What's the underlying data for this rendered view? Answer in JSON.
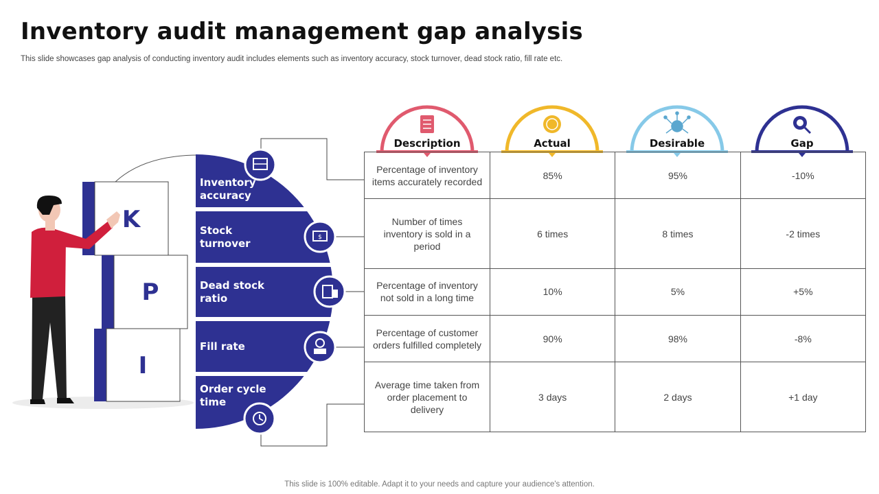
{
  "page": {
    "title": "Inventory audit management gap analysis",
    "subtitle": "This slide showcases gap analysis of conducting inventory audit includes elements such as inventory accuracy, stock turnover, dead stock ratio, fill rate etc.",
    "footer": "This slide is 100% editable. Adapt it to your needs and capture your audience's attention."
  },
  "blocks": {
    "k": "K",
    "p": "P",
    "i": "I"
  },
  "kpis": [
    {
      "label": "Inventory accuracy",
      "icon": "inventory-icon"
    },
    {
      "label": "Stock turnover",
      "icon": "turnover-icon"
    },
    {
      "label": "Dead stock ratio",
      "icon": "dead-stock-icon"
    },
    {
      "label": "Fill rate",
      "icon": "fill-rate-icon"
    },
    {
      "label": "Order cycle time",
      "icon": "order-cycle-icon"
    }
  ],
  "columns": [
    {
      "label": "Description",
      "color": "#e05a6e",
      "icon": "document-icon"
    },
    {
      "label": "Actual",
      "color": "#f0b82a",
      "icon": "badge-icon"
    },
    {
      "label": "Desirable",
      "color": "#86c9e8",
      "icon": "brain-network-icon"
    },
    {
      "label": "Gap",
      "color": "#2e3192",
      "icon": "magnifier-icon"
    }
  ],
  "rows": [
    {
      "description": "Percentage of inventory items accurately recorded",
      "actual": "85%",
      "desirable": "95%",
      "gap": "-10%"
    },
    {
      "description": "Number of times inventory is sold in a period",
      "actual": "6 times",
      "desirable": "8 times",
      "gap": "-2 times"
    },
    {
      "description": "Percentage of inventory not sold in a long time",
      "actual": "10%",
      "desirable": "5%",
      "gap": "+5%"
    },
    {
      "description": "Percentage of customer orders fulfilled completely",
      "actual": "90%",
      "desirable": "98%",
      "gap": "-8%"
    },
    {
      "description": "Average time taken from order placement to delivery",
      "actual": "3 days",
      "desirable": "2 days",
      "gap": "+1 day"
    }
  ],
  "colors": {
    "primary": "#2e3192",
    "shirt": "#d01f3c"
  }
}
